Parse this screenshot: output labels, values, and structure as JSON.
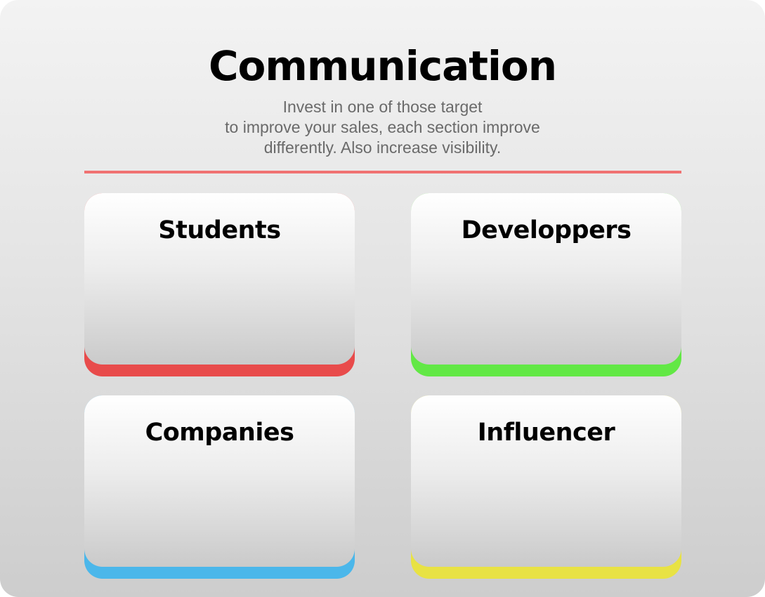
{
  "header": {
    "title": "Communication",
    "subtitle_lines": [
      "Invest in one of those target",
      "to improve your sales, each section improve",
      "differently. Also increase visibility."
    ]
  },
  "colors": {
    "divider": "#f07272",
    "students_accent": "#e84b4b",
    "developers_accent": "#62e845",
    "companies_accent": "#4bb7ea",
    "influencer_accent": "#e8e244"
  },
  "cards": [
    {
      "label": "Students",
      "accent": "#e84b4b"
    },
    {
      "label": "Developpers",
      "accent": "#62e845"
    },
    {
      "label": "Companies",
      "accent": "#4bb7ea"
    },
    {
      "label": "Influencer",
      "accent": "#e8e244"
    }
  ]
}
